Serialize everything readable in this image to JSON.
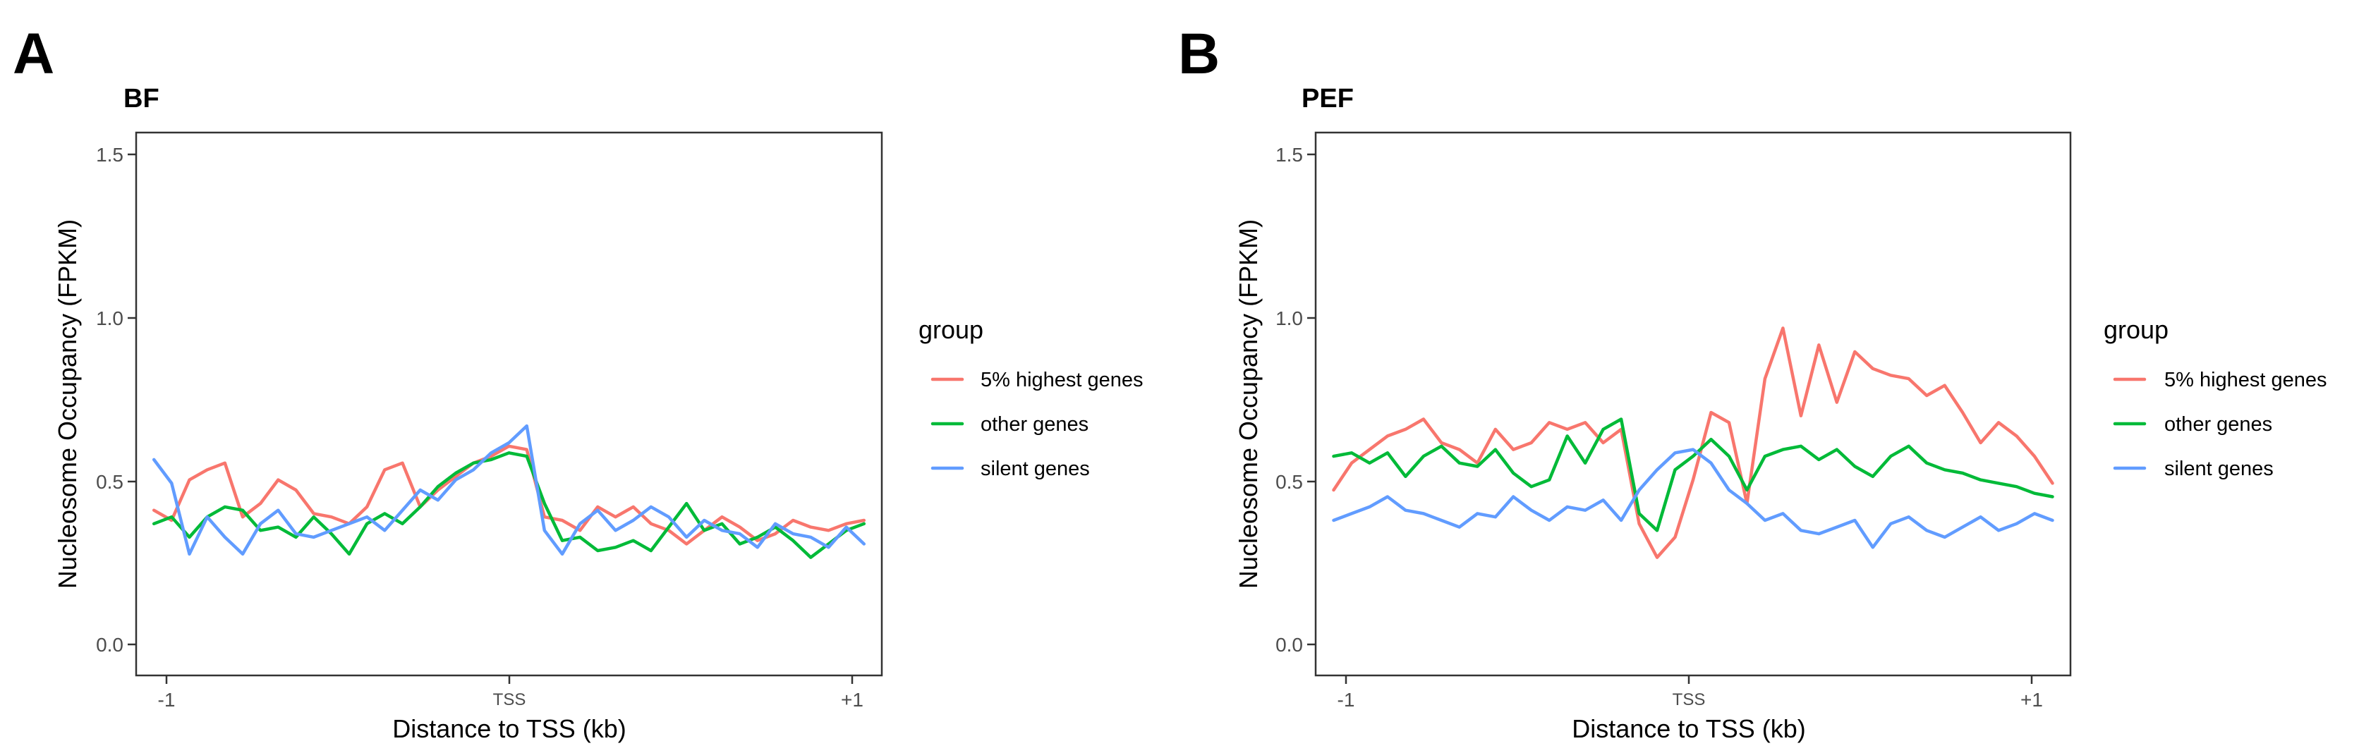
{
  "panels": [
    {
      "letter": "A",
      "title": "BF"
    },
    {
      "letter": "B",
      "title": "PEF"
    }
  ],
  "colors": {
    "5% highest genes": "#F8766D",
    "other genes": "#00BA38",
    "silent genes": "#619CFF"
  },
  "chart_data": [
    {
      "type": "line",
      "title": "BF",
      "xlabel": "Distance to TSS (kb)",
      "ylabel": "Nucleosome Occupancy (FPKM)",
      "xlim": [
        -1.05,
        1.05
      ],
      "ylim": [
        -0.03,
        1.58
      ],
      "x_ticks": [
        -1,
        0,
        1
      ],
      "x_tick_labels": [
        "-1",
        "TSS",
        "+1"
      ],
      "y_ticks": [
        0.0,
        0.5,
        1.0,
        1.5
      ],
      "y_tick_labels": [
        "0.0",
        "0.5",
        "1.0",
        "1.5"
      ],
      "grid": false,
      "legend": {
        "title": "group",
        "position": "right",
        "entries": [
          "5% highest genes",
          "other genes",
          "silent genes"
        ]
      },
      "x": [
        -1.0,
        -0.95,
        -0.9,
        -0.85,
        -0.8,
        -0.75,
        -0.7,
        -0.65,
        -0.6,
        -0.55,
        -0.5,
        -0.45,
        -0.4,
        -0.35,
        -0.3,
        -0.25,
        -0.2,
        -0.15,
        -0.1,
        -0.05,
        0.0,
        0.05,
        0.1,
        0.15,
        0.2,
        0.25,
        0.3,
        0.35,
        0.4,
        0.45,
        0.5,
        0.55,
        0.6,
        0.65,
        0.7,
        0.75,
        0.8,
        0.85,
        0.9,
        0.95,
        1.0
      ],
      "series": [
        {
          "name": "5% highest genes",
          "values": [
            0.46,
            0.43,
            0.55,
            0.58,
            0.6,
            0.44,
            0.48,
            0.55,
            0.52,
            0.45,
            0.44,
            0.42,
            0.47,
            0.58,
            0.6,
            0.47,
            0.52,
            0.56,
            0.6,
            0.62,
            0.65,
            0.64,
            0.44,
            0.43,
            0.4,
            0.47,
            0.44,
            0.47,
            0.42,
            0.4,
            0.36,
            0.4,
            0.44,
            0.41,
            0.37,
            0.39,
            0.43,
            0.41,
            0.4,
            0.42,
            0.43
          ]
        },
        {
          "name": "other genes",
          "values": [
            0.42,
            0.44,
            0.38,
            0.44,
            0.47,
            0.46,
            0.4,
            0.41,
            0.38,
            0.44,
            0.39,
            0.33,
            0.42,
            0.45,
            0.42,
            0.47,
            0.53,
            0.57,
            0.6,
            0.61,
            0.63,
            0.62,
            0.48,
            0.37,
            0.38,
            0.34,
            0.35,
            0.37,
            0.34,
            0.41,
            0.48,
            0.4,
            0.42,
            0.36,
            0.38,
            0.41,
            0.37,
            0.32,
            0.36,
            0.4,
            0.42
          ]
        },
        {
          "name": "silent genes",
          "values": [
            0.61,
            0.54,
            0.33,
            0.44,
            0.38,
            0.33,
            0.42,
            0.46,
            0.39,
            0.38,
            0.4,
            0.42,
            0.44,
            0.4,
            0.46,
            0.52,
            0.49,
            0.55,
            0.58,
            0.63,
            0.66,
            0.71,
            0.4,
            0.33,
            0.42,
            0.46,
            0.4,
            0.43,
            0.47,
            0.44,
            0.38,
            0.43,
            0.4,
            0.39,
            0.35,
            0.42,
            0.39,
            0.38,
            0.35,
            0.41,
            0.36
          ]
        }
      ]
    },
    {
      "type": "line",
      "title": "PEF",
      "xlabel": "Distance to TSS (kb)",
      "ylabel": "Nucleosome Occupancy (FPKM)",
      "xlim": [
        -1.05,
        1.05
      ],
      "ylim": [
        -0.03,
        1.58
      ],
      "x_ticks": [
        -1,
        0,
        1
      ],
      "x_tick_labels": [
        "-1",
        "TSS",
        "+1"
      ],
      "y_ticks": [
        0.0,
        0.5,
        1.0,
        1.5
      ],
      "y_tick_labels": [
        "0.0",
        "0.5",
        "1.0",
        "1.5"
      ],
      "grid": false,
      "legend": {
        "title": "group",
        "position": "right",
        "entries": [
          "5% highest genes",
          "other genes",
          "silent genes"
        ]
      },
      "x": [
        -1.0,
        -0.95,
        -0.9,
        -0.85,
        -0.8,
        -0.75,
        -0.7,
        -0.65,
        -0.6,
        -0.55,
        -0.5,
        -0.45,
        -0.4,
        -0.35,
        -0.3,
        -0.25,
        -0.2,
        -0.15,
        -0.1,
        -0.05,
        0.0,
        0.05,
        0.1,
        0.15,
        0.2,
        0.25,
        0.3,
        0.35,
        0.4,
        0.45,
        0.5,
        0.55,
        0.6,
        0.65,
        0.7,
        0.75,
        0.8,
        0.85,
        0.9,
        0.95,
        1.0
      ],
      "series": [
        {
          "name": "5% highest genes",
          "values": [
            0.52,
            0.6,
            0.64,
            0.68,
            0.7,
            0.73,
            0.66,
            0.64,
            0.6,
            0.7,
            0.64,
            0.66,
            0.72,
            0.7,
            0.72,
            0.66,
            0.7,
            0.42,
            0.32,
            0.38,
            0.55,
            0.75,
            0.72,
            0.48,
            0.85,
            1.0,
            0.74,
            0.95,
            0.78,
            0.93,
            0.88,
            0.86,
            0.85,
            0.8,
            0.83,
            0.75,
            0.66,
            0.72,
            0.68,
            0.62,
            0.54
          ]
        },
        {
          "name": "other genes",
          "values": [
            0.62,
            0.63,
            0.6,
            0.63,
            0.56,
            0.62,
            0.65,
            0.6,
            0.59,
            0.64,
            0.57,
            0.53,
            0.55,
            0.68,
            0.6,
            0.7,
            0.73,
            0.45,
            0.4,
            0.58,
            0.62,
            0.67,
            0.62,
            0.52,
            0.62,
            0.64,
            0.65,
            0.61,
            0.64,
            0.59,
            0.56,
            0.62,
            0.65,
            0.6,
            0.58,
            0.57,
            0.55,
            0.54,
            0.53,
            0.51,
            0.5
          ]
        },
        {
          "name": "silent genes",
          "values": [
            0.43,
            0.45,
            0.47,
            0.5,
            0.46,
            0.45,
            0.43,
            0.41,
            0.45,
            0.44,
            0.5,
            0.46,
            0.43,
            0.47,
            0.46,
            0.49,
            0.43,
            0.52,
            0.58,
            0.63,
            0.64,
            0.6,
            0.52,
            0.48,
            0.43,
            0.45,
            0.4,
            0.39,
            0.41,
            0.43,
            0.35,
            0.42,
            0.44,
            0.4,
            0.38,
            0.41,
            0.44,
            0.4,
            0.42,
            0.45,
            0.43
          ]
        }
      ]
    }
  ]
}
